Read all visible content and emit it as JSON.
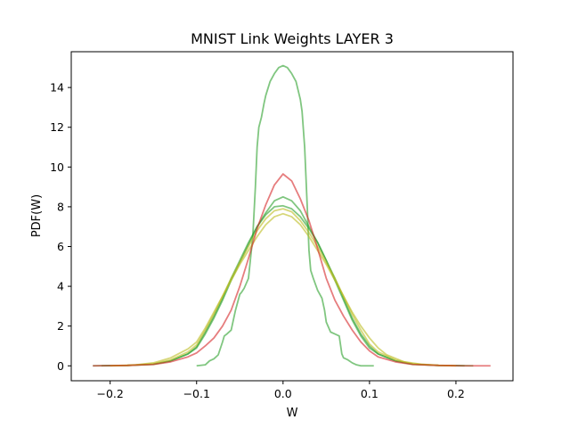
{
  "chart_data": {
    "type": "line",
    "title": "MNIST Link Weights LAYER 3",
    "xlabel": "W",
    "ylabel": "PDF(W)",
    "xlim": [
      -0.245,
      0.266
    ],
    "ylim": [
      -0.75,
      15.8
    ],
    "x_ticks": [
      -0.2,
      -0.1,
      0.0,
      0.1,
      0.2
    ],
    "x_tick_labels": [
      "−0.2",
      "−0.1",
      "0.0",
      "0.1",
      "0.2"
    ],
    "y_ticks": [
      0,
      2,
      4,
      6,
      8,
      10,
      12,
      14
    ],
    "y_tick_labels": [
      "0",
      "2",
      "4",
      "6",
      "8",
      "10",
      "12",
      "14"
    ],
    "grid": false,
    "series": [
      {
        "color": "#2ca02c",
        "x": [
          -0.1,
          -0.09,
          -0.085,
          -0.08,
          -0.075,
          -0.07,
          -0.068,
          -0.065,
          -0.06,
          -0.055,
          -0.05,
          -0.048,
          -0.045,
          -0.04,
          -0.035,
          -0.032,
          -0.03,
          -0.028,
          -0.025,
          -0.022,
          -0.02,
          -0.015,
          -0.01,
          -0.005,
          0.0,
          0.005,
          0.01,
          0.015,
          0.02,
          0.022,
          0.025,
          0.028,
          0.03,
          0.032,
          0.035,
          0.04,
          0.045,
          0.048,
          0.05,
          0.055,
          0.06,
          0.065,
          0.068,
          0.07,
          0.075,
          0.08,
          0.085,
          0.09,
          0.095,
          0.1,
          0.105
        ],
        "y": [
          0.0,
          0.05,
          0.25,
          0.35,
          0.55,
          1.2,
          1.5,
          1.6,
          1.8,
          2.8,
          3.6,
          3.7,
          3.9,
          4.4,
          6.5,
          9.0,
          11.0,
          12.0,
          12.5,
          13.2,
          13.6,
          14.3,
          14.7,
          15.0,
          15.1,
          15.0,
          14.7,
          14.3,
          13.4,
          12.8,
          11.0,
          8.0,
          5.8,
          4.8,
          4.4,
          3.8,
          3.4,
          2.8,
          2.2,
          1.7,
          1.6,
          1.5,
          0.6,
          0.4,
          0.3,
          0.15,
          0.05,
          0.0,
          0.0,
          0.0,
          0.0
        ]
      },
      {
        "color": "#2ca02c",
        "x": [
          -0.22,
          -0.18,
          -0.15,
          -0.13,
          -0.11,
          -0.1,
          -0.09,
          -0.08,
          -0.07,
          -0.06,
          -0.05,
          -0.04,
          -0.03,
          -0.02,
          -0.01,
          0.0,
          0.01,
          0.02,
          0.03,
          0.04,
          0.05,
          0.06,
          0.07,
          0.08,
          0.09,
          0.1,
          0.11,
          0.13,
          0.15,
          0.18,
          0.22
        ],
        "y": [
          0.0,
          0.02,
          0.08,
          0.25,
          0.6,
          0.9,
          1.6,
          2.4,
          3.3,
          4.3,
          5.2,
          6.1,
          7.0,
          7.7,
          8.3,
          8.5,
          8.3,
          7.8,
          7.0,
          6.2,
          5.3,
          4.3,
          3.3,
          2.3,
          1.5,
          0.9,
          0.6,
          0.25,
          0.08,
          0.02,
          0.0
        ]
      },
      {
        "color": "#2ca02c",
        "x": [
          -0.21,
          -0.18,
          -0.15,
          -0.13,
          -0.11,
          -0.1,
          -0.09,
          -0.08,
          -0.07,
          -0.06,
          -0.05,
          -0.04,
          -0.03,
          -0.02,
          -0.01,
          0.0,
          0.01,
          0.02,
          0.03,
          0.04,
          0.05,
          0.06,
          0.07,
          0.08,
          0.09,
          0.1,
          0.11,
          0.13,
          0.15,
          0.18,
          0.21
        ],
        "y": [
          0.0,
          0.02,
          0.08,
          0.25,
          0.6,
          0.95,
          1.7,
          2.5,
          3.4,
          4.4,
          5.3,
          6.2,
          7.0,
          7.6,
          8.0,
          8.05,
          7.9,
          7.5,
          6.9,
          6.2,
          5.3,
          4.4,
          3.4,
          2.4,
          1.6,
          1.0,
          0.6,
          0.25,
          0.08,
          0.02,
          0.0
        ]
      },
      {
        "color": "#bcbd22",
        "x": [
          -0.2,
          -0.18,
          -0.15,
          -0.13,
          -0.11,
          -0.1,
          -0.09,
          -0.08,
          -0.07,
          -0.06,
          -0.05,
          -0.04,
          -0.03,
          -0.02,
          -0.01,
          0.0,
          0.01,
          0.02,
          0.03,
          0.04,
          0.05,
          0.06,
          0.07,
          0.08,
          0.09,
          0.1,
          0.11,
          0.13,
          0.15,
          0.18,
          0.2
        ],
        "y": [
          0.0,
          0.02,
          0.1,
          0.3,
          0.7,
          1.05,
          1.8,
          2.6,
          3.5,
          4.4,
          5.2,
          6.0,
          6.8,
          7.4,
          7.8,
          7.9,
          7.75,
          7.3,
          6.7,
          6.0,
          5.2,
          4.4,
          3.5,
          2.6,
          1.8,
          1.1,
          0.7,
          0.3,
          0.1,
          0.02,
          0.0
        ]
      },
      {
        "color": "#bcbd22",
        "x": [
          -0.2,
          -0.17,
          -0.15,
          -0.13,
          -0.11,
          -0.1,
          -0.09,
          -0.08,
          -0.07,
          -0.06,
          -0.05,
          -0.04,
          -0.03,
          -0.02,
          -0.01,
          0.0,
          0.01,
          0.02,
          0.03,
          0.04,
          0.05,
          0.06,
          0.07,
          0.08,
          0.09,
          0.1,
          0.11,
          0.12,
          0.14,
          0.16,
          0.18,
          0.2
        ],
        "y": [
          0.0,
          0.05,
          0.15,
          0.4,
          0.85,
          1.2,
          1.9,
          2.7,
          3.5,
          4.3,
          5.1,
          5.8,
          6.5,
          7.1,
          7.5,
          7.65,
          7.5,
          7.1,
          6.5,
          5.8,
          5.1,
          4.3,
          3.5,
          2.7,
          2.0,
          1.4,
          0.9,
          0.55,
          0.2,
          0.08,
          0.03,
          0.0
        ]
      },
      {
        "color": "#d62728",
        "x": [
          -0.22,
          -0.18,
          -0.15,
          -0.13,
          -0.11,
          -0.1,
          -0.09,
          -0.08,
          -0.07,
          -0.06,
          -0.05,
          -0.04,
          -0.03,
          -0.02,
          -0.01,
          0.0,
          0.01,
          0.02,
          0.03,
          0.04,
          0.05,
          0.06,
          0.07,
          0.08,
          0.09,
          0.1,
          0.11,
          0.13,
          0.15,
          0.18,
          0.21,
          0.24
        ],
        "y": [
          0.0,
          0.02,
          0.07,
          0.2,
          0.45,
          0.65,
          1.0,
          1.4,
          2.0,
          2.8,
          4.0,
          5.4,
          6.9,
          8.1,
          9.1,
          9.65,
          9.3,
          8.4,
          7.3,
          5.9,
          4.4,
          3.3,
          2.5,
          1.8,
          1.2,
          0.75,
          0.45,
          0.2,
          0.07,
          0.02,
          0.0,
          0.0
        ]
      }
    ]
  }
}
